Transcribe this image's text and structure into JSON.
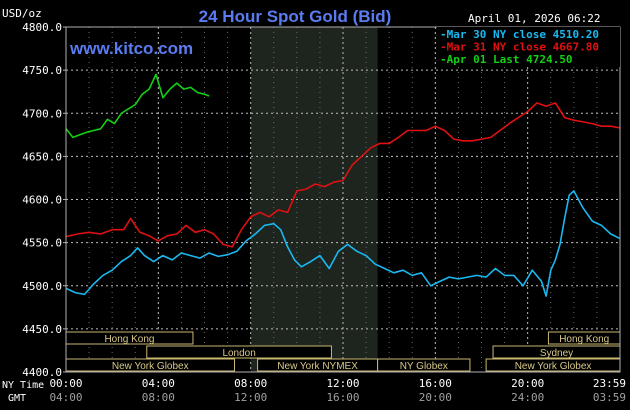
{
  "chart_data": {
    "type": "line",
    "title": "24 Hour Spot Gold (Bid)",
    "brand": "www.kitco.com",
    "date_label": "April 01, 2026 06:22",
    "ylabel": "USD/oz",
    "ylim": [
      4400,
      4800
    ],
    "yticks": [
      "4800.0",
      "4750.0",
      "4700.0",
      "4650.0",
      "4600.0",
      "4550.0",
      "4500.0",
      "4450.0",
      "4400.0"
    ],
    "ytick_values": [
      4800,
      4750,
      4700,
      4650,
      4600,
      4550,
      4500,
      4450,
      4400
    ],
    "xlim": [
      0,
      24
    ],
    "nytime_label": "NY Time",
    "gmt_label": "GMT",
    "xticks_ny": [
      "00:00",
      "04:00",
      "08:00",
      "12:00",
      "16:00",
      "20:00",
      "23:59"
    ],
    "xticks_gmt": [
      "04:00",
      "08:00",
      "12:00",
      "16:00",
      "20:00",
      "24:00",
      "03:59"
    ],
    "xtick_hours": [
      0,
      4,
      8,
      12,
      16,
      20,
      23.98
    ],
    "shaded_hours": [
      8,
      13.5
    ],
    "legend_position": "top-right",
    "legend": [
      {
        "text": "Mar 30 NY close 4510.20",
        "color": "#1ab8f0"
      },
      {
        "text": "Mar 31 NY close 4667.80",
        "color": "#e01010"
      },
      {
        "text": "Apr 01 Last 4724.50",
        "color": "#14d014"
      }
    ],
    "sessions": [
      {
        "label": "Hong Kong",
        "start": 0,
        "end": 5.5
      },
      {
        "label": "Hong Kong",
        "start": 20.9,
        "end": 24
      },
      {
        "label": "London",
        "start": 3.5,
        "end": 11.5
      },
      {
        "label": "Sydney",
        "start": 18.5,
        "end": 24
      },
      {
        "label": "New York Globex",
        "start": 0,
        "end": 7.3
      },
      {
        "label": "New York NYMEX",
        "start": 8.3,
        "end": 13.5
      },
      {
        "label": "NY Globex",
        "start": 13.5,
        "end": 17.5
      },
      {
        "label": "New York Globex",
        "start": 18.2,
        "end": 24
      }
    ],
    "series": [
      {
        "name": "Mar 30",
        "color": "#1ab8f0",
        "x": [
          0,
          0.4,
          0.8,
          1.2,
          1.6,
          2.0,
          2.4,
          2.8,
          3.1,
          3.4,
          3.8,
          4.2,
          4.6,
          5.0,
          5.4,
          5.8,
          6.2,
          6.6,
          7.0,
          7.4,
          7.8,
          8.2,
          8.6,
          9.0,
          9.3,
          9.6,
          9.9,
          10.2,
          10.6,
          11.0,
          11.4,
          11.8,
          12.2,
          12.6,
          13.0,
          13.4,
          13.8,
          14.2,
          14.6,
          15.0,
          15.4,
          15.8,
          16.2,
          16.6,
          17.0,
          17.4,
          17.8,
          18.2,
          18.6,
          19.0,
          19.4,
          19.8,
          20.2,
          20.6,
          20.8,
          21.0,
          21.2,
          21.4,
          21.6,
          21.8,
          22.0,
          22.4,
          22.8,
          23.2,
          23.6,
          23.98
        ],
        "y": [
          4497,
          4492,
          4490,
          4502,
          4512,
          4518,
          4528,
          4535,
          4544,
          4535,
          4528,
          4535,
          4530,
          4538,
          4535,
          4532,
          4538,
          4534,
          4536,
          4540,
          4552,
          4560,
          4570,
          4572,
          4565,
          4545,
          4530,
          4522,
          4528,
          4535,
          4520,
          4540,
          4548,
          4540,
          4535,
          4525,
          4520,
          4515,
          4518,
          4512,
          4515,
          4500,
          4505,
          4510,
          4508,
          4510,
          4512,
          4510,
          4520,
          4512,
          4512,
          4500,
          4518,
          4505,
          4488,
          4518,
          4530,
          4548,
          4578,
          4605,
          4610,
          4590,
          4575,
          4570,
          4560,
          4555
        ]
      },
      {
        "name": "Mar 31",
        "color": "#e01010",
        "x": [
          0,
          0.5,
          1.0,
          1.5,
          2.0,
          2.5,
          2.8,
          3.2,
          3.6,
          4.0,
          4.4,
          4.8,
          5.2,
          5.6,
          6.0,
          6.4,
          6.8,
          7.2,
          7.6,
          8.0,
          8.4,
          8.8,
          9.2,
          9.6,
          10.0,
          10.4,
          10.8,
          11.2,
          11.6,
          12.0,
          12.4,
          12.8,
          13.2,
          13.6,
          14.0,
          14.4,
          14.8,
          15.2,
          15.6,
          16.0,
          16.4,
          16.8,
          17.2,
          17.6,
          18.0,
          18.4,
          18.8,
          19.2,
          19.6,
          20.0,
          20.4,
          20.8,
          21.2,
          21.6,
          22.0,
          22.4,
          22.8,
          23.2,
          23.6,
          23.98
        ],
        "y": [
          4557,
          4560,
          4562,
          4560,
          4565,
          4565,
          4578,
          4562,
          4558,
          4552,
          4558,
          4560,
          4570,
          4562,
          4565,
          4560,
          4548,
          4545,
          4565,
          4580,
          4585,
          4580,
          4588,
          4585,
          4610,
          4612,
          4618,
          4615,
          4620,
          4622,
          4640,
          4650,
          4660,
          4665,
          4665,
          4672,
          4680,
          4680,
          4680,
          4685,
          4680,
          4670,
          4668,
          4668,
          4670,
          4672,
          4680,
          4688,
          4695,
          4702,
          4712,
          4708,
          4712,
          4695,
          4692,
          4690,
          4688,
          4685,
          4685,
          4683
        ]
      },
      {
        "name": "Apr 01",
        "color": "#14d014",
        "x": [
          0,
          0.3,
          0.6,
          0.9,
          1.2,
          1.5,
          1.8,
          2.1,
          2.4,
          2.7,
          3.0,
          3.3,
          3.6,
          3.9,
          4.2,
          4.5,
          4.8,
          5.1,
          5.4,
          5.7,
          6.0,
          6.2
        ],
        "y": [
          4682,
          4672,
          4675,
          4678,
          4680,
          4682,
          4693,
          4688,
          4700,
          4705,
          4710,
          4722,
          4728,
          4745,
          4718,
          4728,
          4735,
          4728,
          4730,
          4724,
          4722,
          4720
        ]
      }
    ]
  }
}
